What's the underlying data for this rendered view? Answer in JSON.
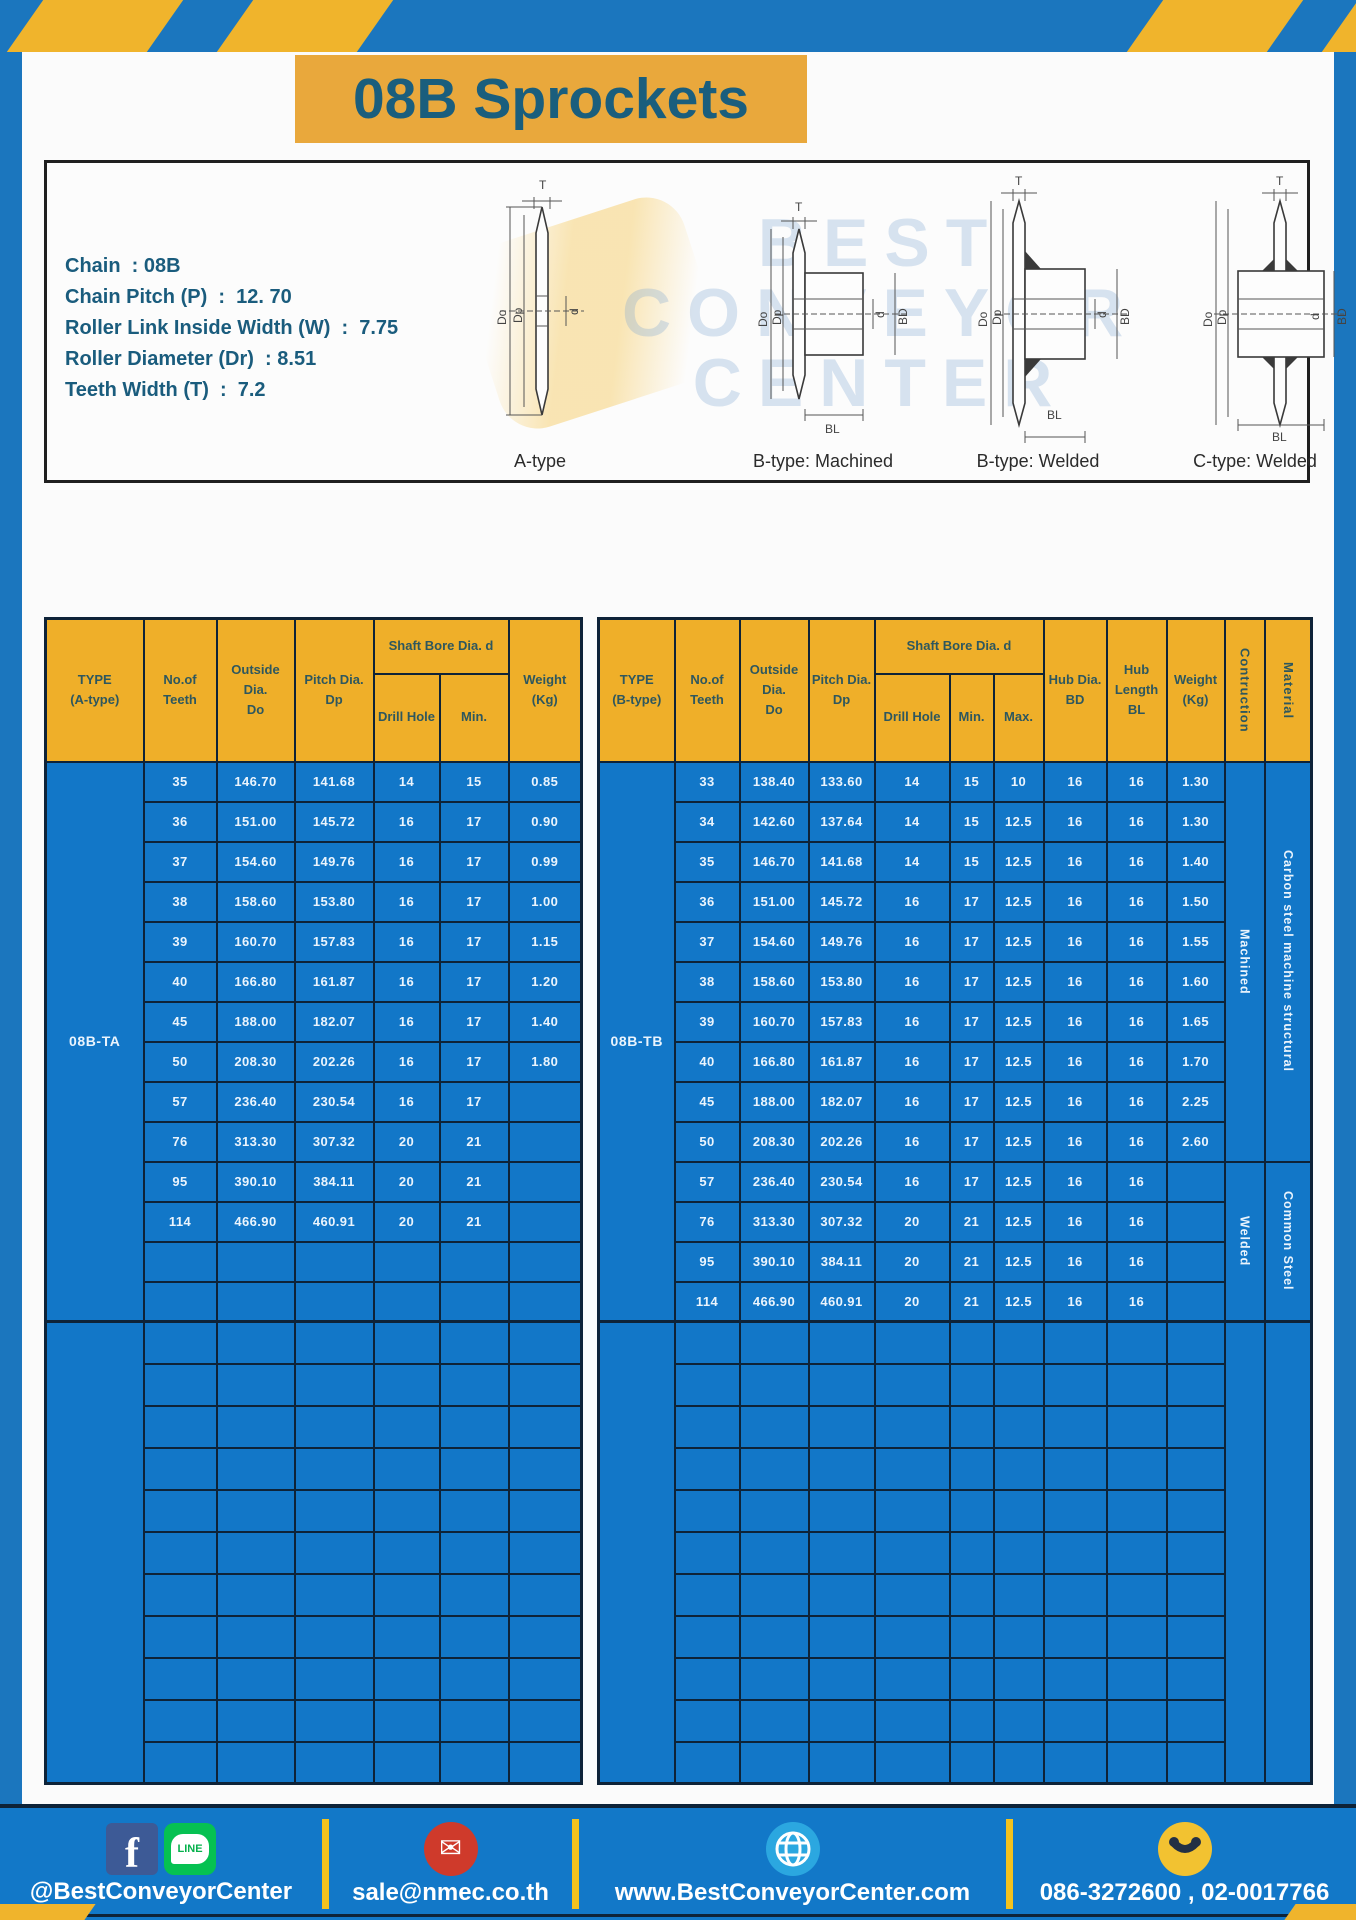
{
  "title": "08B Sprockets",
  "colors": {
    "frame_blue": "#1b76be",
    "table_cell_blue": "#1277c8",
    "header_gold": "#efaf29",
    "title_gold": "#e9a83c",
    "navy_border": "#0e2338",
    "title_teal": "#1a5e7d",
    "stripe_yellow": "#f0b42c"
  },
  "specs": {
    "lines": [
      "Chain  : 08B",
      "Chain Pitch (P)  :  12. 70",
      "Roller Link Inside Width (W)  :  7.75",
      "Roller Diameter (Dr)  : 8.51",
      "Teeth Width (T)  :  7.2"
    ]
  },
  "diagram": {
    "watermark": "BEST\nCONVEYOR\nCENTER",
    "variants": [
      "A-type",
      "B-type: Machined",
      "B-type: Welded",
      "C-type: Welded"
    ],
    "dim_labels": {
      "t": "T",
      "do": "Do",
      "dp": "Dp",
      "d": "d",
      "bd": "BD",
      "bl": "BL"
    }
  },
  "tables": {
    "a": {
      "type_value": "08B-TA",
      "headers": {
        "type": "TYPE\n(A-type)",
        "teeth": "No.of\nTeeth",
        "outside": "Outside\nDia.\nDo",
        "pitch": "Pitch Dia.\nDp",
        "shaft": "Shaft Bore Dia. d",
        "drill": "Drill Hole",
        "min": "Min.",
        "weight": "Weight\n(Kg)"
      },
      "rows": [
        [
          "35",
          "146.70",
          "141.68",
          "14",
          "15",
          "0.85"
        ],
        [
          "36",
          "151.00",
          "145.72",
          "16",
          "17",
          "0.90"
        ],
        [
          "37",
          "154.60",
          "149.76",
          "16",
          "17",
          "0.99"
        ],
        [
          "38",
          "158.60",
          "153.80",
          "16",
          "17",
          "1.00"
        ],
        [
          "39",
          "160.70",
          "157.83",
          "16",
          "17",
          "1.15"
        ],
        [
          "40",
          "166.80",
          "161.87",
          "16",
          "17",
          "1.20"
        ],
        [
          "45",
          "188.00",
          "182.07",
          "16",
          "17",
          "1.40"
        ],
        [
          "50",
          "208.30",
          "202.26",
          "16",
          "17",
          "1.80"
        ],
        [
          "57",
          "236.40",
          "230.54",
          "16",
          "17",
          ""
        ],
        [
          "76",
          "313.30",
          "307.32",
          "20",
          "21",
          ""
        ],
        [
          "95",
          "390.10",
          "384.11",
          "20",
          "21",
          ""
        ],
        [
          "114",
          "466.90",
          "460.91",
          "20",
          "21",
          ""
        ]
      ],
      "data_section_rows": 14,
      "empty_bottom_rows": 11
    },
    "b": {
      "type_value": "08B-TB",
      "headers": {
        "type": "TYPE\n(B-type)",
        "teeth": "No.of\nTeeth",
        "outside": "Outside\nDia.\nDo",
        "pitch": "Pitch Dia.\nDp",
        "shaft": "Shaft Bore Dia. d",
        "drill": "Drill Hole",
        "min": "Min.",
        "max": "Max.",
        "hub_dia": "Hub Dia.\nBD",
        "hub_len": "Hub\nLength\nBL",
        "weight": "Weight\n(Kg)",
        "construction": "Contruction",
        "material": "Material"
      },
      "rows": [
        [
          "33",
          "138.40",
          "133.60",
          "14",
          "15",
          "10",
          "16",
          "16",
          "1.30"
        ],
        [
          "34",
          "142.60",
          "137.64",
          "14",
          "15",
          "12.5",
          "16",
          "16",
          "1.30"
        ],
        [
          "35",
          "146.70",
          "141.68",
          "14",
          "15",
          "12.5",
          "16",
          "16",
          "1.40"
        ],
        [
          "36",
          "151.00",
          "145.72",
          "16",
          "17",
          "12.5",
          "16",
          "16",
          "1.50"
        ],
        [
          "37",
          "154.60",
          "149.76",
          "16",
          "17",
          "12.5",
          "16",
          "16",
          "1.55"
        ],
        [
          "38",
          "158.60",
          "153.80",
          "16",
          "17",
          "12.5",
          "16",
          "16",
          "1.60"
        ],
        [
          "39",
          "160.70",
          "157.83",
          "16",
          "17",
          "12.5",
          "16",
          "16",
          "1.65"
        ],
        [
          "40",
          "166.80",
          "161.87",
          "16",
          "17",
          "12.5",
          "16",
          "16",
          "1.70"
        ],
        [
          "45",
          "188.00",
          "182.07",
          "16",
          "17",
          "12.5",
          "16",
          "16",
          "2.25"
        ],
        [
          "50",
          "208.30",
          "202.26",
          "16",
          "17",
          "12.5",
          "16",
          "16",
          "2.60"
        ],
        [
          "57",
          "236.40",
          "230.54",
          "16",
          "17",
          "12.5",
          "16",
          "16",
          ""
        ],
        [
          "76",
          "313.30",
          "307.32",
          "20",
          "21",
          "12.5",
          "16",
          "16",
          ""
        ],
        [
          "95",
          "390.10",
          "384.11",
          "20",
          "21",
          "12.5",
          "16",
          "16",
          ""
        ],
        [
          "114",
          "466.90",
          "460.91",
          "20",
          "21",
          "12.5",
          "16",
          "16",
          ""
        ]
      ],
      "construction_spans": [
        {
          "label": "Machined",
          "span": 10
        },
        {
          "label": "Welded",
          "span": 4
        }
      ],
      "material_spans": [
        {
          "label": "Carbon steel  machine structural",
          "span": 10
        },
        {
          "label": "Common Steel",
          "span": 4
        }
      ],
      "data_section_rows": 14,
      "empty_bottom_rows": 11
    }
  },
  "footer": {
    "facebook_f": "f",
    "line_label": "LINE",
    "social_handle": "@BestConveyorCenter",
    "email": "sale@nmec.co.th",
    "website": "www.BestConveyorCenter.com",
    "phones": "086-3272600 , 02-0017766",
    "mail_glyph": "✉"
  }
}
